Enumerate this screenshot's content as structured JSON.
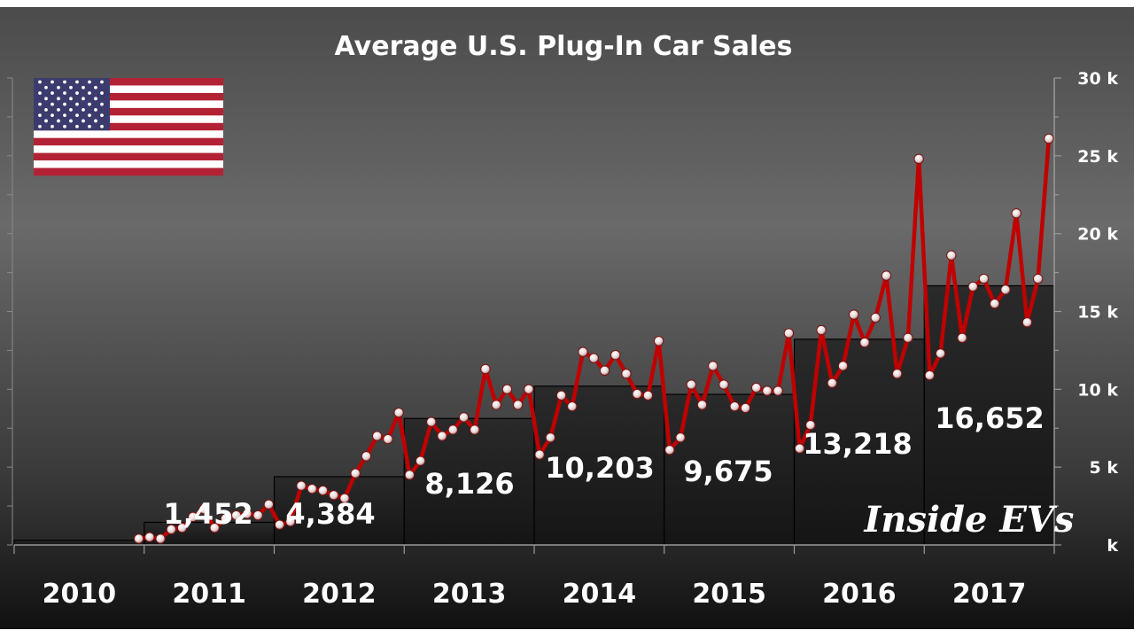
{
  "chart_data": {
    "type": "line",
    "title": "Average U.S. Plug-In Car Sales",
    "brand_label": "Inside EVs",
    "flag": "us-flag",
    "y_tick_labels": [
      "k",
      "5 k",
      "10 k",
      "15 k",
      "20 k",
      "25 k",
      "30 k"
    ],
    "ylim": [
      0,
      30000
    ],
    "years": [
      "2010",
      "2011",
      "2012",
      "2013",
      "2014",
      "2015",
      "2016",
      "2017"
    ],
    "yearly_average": {
      "values": [
        300,
        1452,
        4384,
        8126,
        10203,
        9675,
        13218,
        16652
      ],
      "labels": [
        "",
        "1,452",
        "4,384",
        "8,126",
        "10,203",
        "9,675",
        "13,218",
        "16,652"
      ]
    },
    "series": [
      {
        "values": [
          400,
          500,
          400,
          1000,
          1100,
          1800,
          2300,
          1100,
          1700,
          1900,
          2000,
          1900,
          2600,
          1300,
          1500,
          3800,
          3600,
          3500,
          3200,
          3000,
          4600,
          5700,
          7000,
          6800,
          8500,
          4500,
          5400,
          7900,
          7000,
          7400,
          8200,
          7400,
          11300,
          9000,
          10000,
          9000,
          10000,
          5800,
          6900,
          9600,
          8900,
          12400,
          12000,
          11200,
          12200,
          11000,
          9700,
          9600,
          13100,
          6100,
          6900,
          10300,
          9000,
          11500,
          10300,
          8900,
          8800,
          10100,
          9900,
          9900,
          13600,
          6200,
          7700,
          13800,
          10400,
          11500,
          14800,
          13000,
          14600,
          17300,
          11000,
          13300,
          24800,
          10900,
          12300,
          18600,
          13300,
          16600,
          17100,
          15500,
          16400,
          21300,
          14300,
          17100,
          26100
        ]
      }
    ],
    "colors": {
      "background_top": "#5a5a5a",
      "background_bottom": "#141414",
      "line": "#c00000",
      "marker": "#f2eaea",
      "bars": "#1a1a1a",
      "text": "#ffffff"
    },
    "grid": false
  }
}
